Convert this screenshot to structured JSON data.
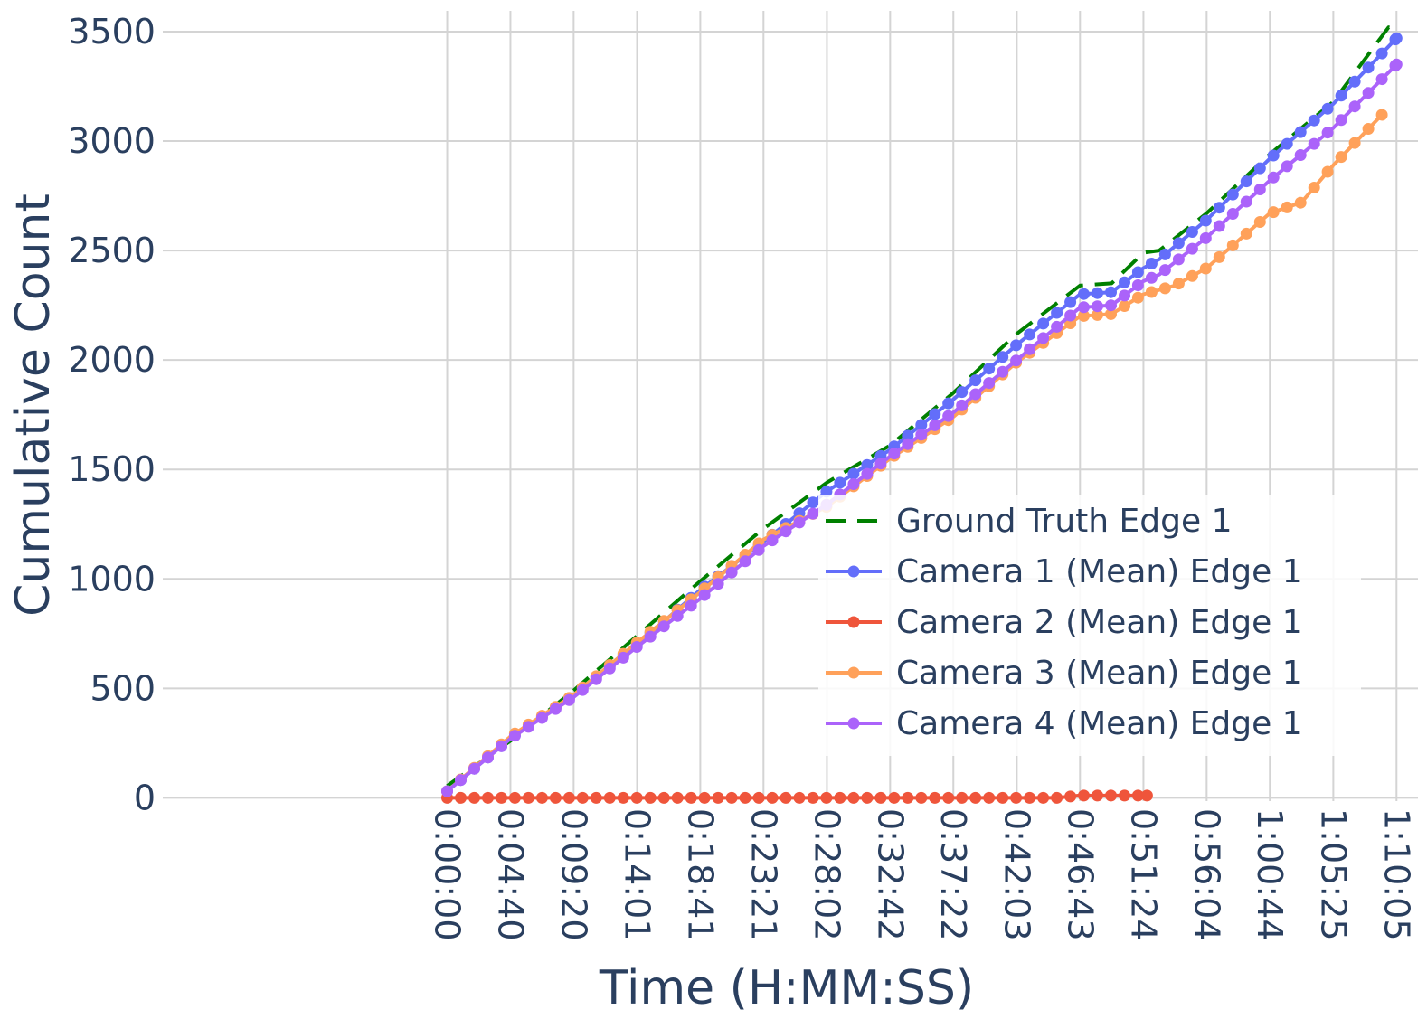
{
  "chart_data": {
    "type": "line",
    "xlabel": "Time (H:MM:SS)",
    "ylabel": "Cumulative Count",
    "ylim": [
      -15,
      3595
    ],
    "xlim": [
      -1260,
      4300
    ],
    "grid": true,
    "legend_position": "bottom-right",
    "x_tick_seconds": [
      0,
      280,
      560,
      841,
      1121,
      1401,
      1682,
      1962,
      2242,
      2523,
      2803,
      3084,
      3364,
      3644,
      3925,
      4205
    ],
    "x_tick_labels": [
      "0:00:00",
      "0:04:40",
      "0:09:20",
      "0:14:01",
      "0:18:41",
      "0:23:21",
      "0:28:02",
      "0:32:42",
      "0:37:22",
      "0:42:03",
      "0:46:43",
      "0:51:24",
      "0:56:04",
      "1:00:44",
      "1:05:25",
      "1:10:05"
    ],
    "y_ticks": [
      0,
      500,
      1000,
      1500,
      2000,
      2500,
      3000,
      3500
    ],
    "y_tick_labels": [
      "0",
      "500",
      "1000",
      "1500",
      "2000",
      "2500",
      "3000",
      "3500"
    ],
    "sample_interval_s": 60,
    "series": [
      {
        "name": "Ground Truth Edge 1",
        "color": "#008000",
        "dash": "dash",
        "markers": false,
        "points": [
          [
            0,
            55
          ],
          [
            280,
            260
          ],
          [
            560,
            490
          ],
          [
            841,
            740
          ],
          [
            1121,
            990
          ],
          [
            1401,
            1230
          ],
          [
            1682,
            1440
          ],
          [
            1962,
            1610
          ],
          [
            2242,
            1850
          ],
          [
            2523,
            2120
          ],
          [
            2803,
            2340
          ],
          [
            2943,
            2350
          ],
          [
            3084,
            2490
          ],
          [
            3154,
            2500
          ],
          [
            3364,
            2670
          ],
          [
            3644,
            2940
          ],
          [
            3925,
            3180
          ],
          [
            4170,
            3520
          ],
          [
            4205,
            3510
          ]
        ]
      },
      {
        "name": "Camera 1 (Mean) Edge 1",
        "color": "#636efa",
        "dash": "solid",
        "markers": true,
        "points": [
          [
            0,
            30
          ],
          [
            280,
            270
          ],
          [
            560,
            470
          ],
          [
            841,
            700
          ],
          [
            1121,
            950
          ],
          [
            1401,
            1170
          ],
          [
            1682,
            1400
          ],
          [
            1962,
            1590
          ],
          [
            2242,
            1820
          ],
          [
            2523,
            2070
          ],
          [
            2803,
            2300
          ],
          [
            2943,
            2310
          ],
          [
            3084,
            2420
          ],
          [
            3154,
            2460
          ],
          [
            3364,
            2640
          ],
          [
            3644,
            2920
          ],
          [
            3925,
            3170
          ],
          [
            4205,
            3470
          ]
        ]
      },
      {
        "name": "Camera 2 (Mean) Edge 1",
        "color": "#ef553b",
        "dash": "solid",
        "markers": true,
        "points": [
          [
            0,
            0
          ],
          [
            2700,
            0
          ],
          [
            2800,
            10
          ],
          [
            3000,
            10
          ],
          [
            3100,
            10
          ]
        ]
      },
      {
        "name": "Camera 3 (Mean) Edge 1",
        "color": "#ffa15a",
        "dash": "solid",
        "markers": true,
        "points": [
          [
            0,
            30
          ],
          [
            280,
            280
          ],
          [
            560,
            470
          ],
          [
            841,
            710
          ],
          [
            1121,
            940
          ],
          [
            1401,
            1180
          ],
          [
            1682,
            1330
          ],
          [
            1962,
            1550
          ],
          [
            2242,
            1740
          ],
          [
            2523,
            1990
          ],
          [
            2803,
            2200
          ],
          [
            2943,
            2210
          ],
          [
            3084,
            2300
          ],
          [
            3224,
            2340
          ],
          [
            3364,
            2420
          ],
          [
            3644,
            2670
          ],
          [
            3784,
            2720
          ],
          [
            3925,
            2890
          ],
          [
            4140,
            3120
          ]
        ]
      },
      {
        "name": "Camera 4 (Mean) Edge 1",
        "color": "#ab63fa",
        "dash": "solid",
        "markers": true,
        "points": [
          [
            0,
            30
          ],
          [
            280,
            270
          ],
          [
            560,
            460
          ],
          [
            841,
            690
          ],
          [
            1121,
            910
          ],
          [
            1401,
            1150
          ],
          [
            1682,
            1340
          ],
          [
            1962,
            1560
          ],
          [
            2242,
            1760
          ],
          [
            2523,
            2000
          ],
          [
            2803,
            2240
          ],
          [
            2943,
            2250
          ],
          [
            3084,
            2360
          ],
          [
            3154,
            2390
          ],
          [
            3364,
            2560
          ],
          [
            3644,
            2820
          ],
          [
            3925,
            3060
          ],
          [
            4205,
            3350
          ]
        ]
      }
    ]
  }
}
